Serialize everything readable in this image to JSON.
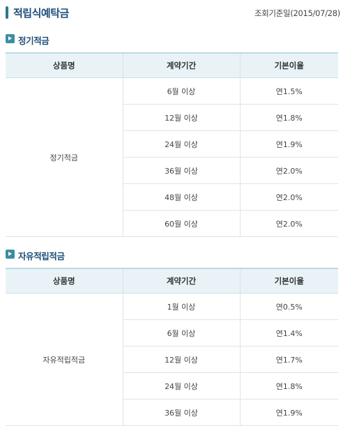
{
  "header": {
    "title": "적립식예탁금",
    "reference_date": "조회기준일(2015/07/28)"
  },
  "columns": [
    "상품명",
    "계약기간",
    "기본이율"
  ],
  "sections": [
    {
      "heading": "정기적금",
      "product": "정기적금",
      "rows": [
        {
          "period": "6월 이상",
          "rate": "연1.5%"
        },
        {
          "period": "12월 이상",
          "rate": "연1.8%"
        },
        {
          "period": "24월 이상",
          "rate": "연1.9%"
        },
        {
          "period": "36월 이상",
          "rate": "연2.0%"
        },
        {
          "period": "48월 이상",
          "rate": "연2.0%"
        },
        {
          "period": "60월 이상",
          "rate": "연2.0%"
        }
      ]
    },
    {
      "heading": "자유적립적금",
      "product": "자유적립적금",
      "rows": [
        {
          "period": "1월 이상",
          "rate": "연0.5%"
        },
        {
          "period": "6월 이상",
          "rate": "연1.4%"
        },
        {
          "period": "12월 이상",
          "rate": "연1.7%"
        },
        {
          "period": "24월 이상",
          "rate": "연1.8%"
        },
        {
          "period": "36월 이상",
          "rate": "연1.9%"
        }
      ]
    }
  ]
}
